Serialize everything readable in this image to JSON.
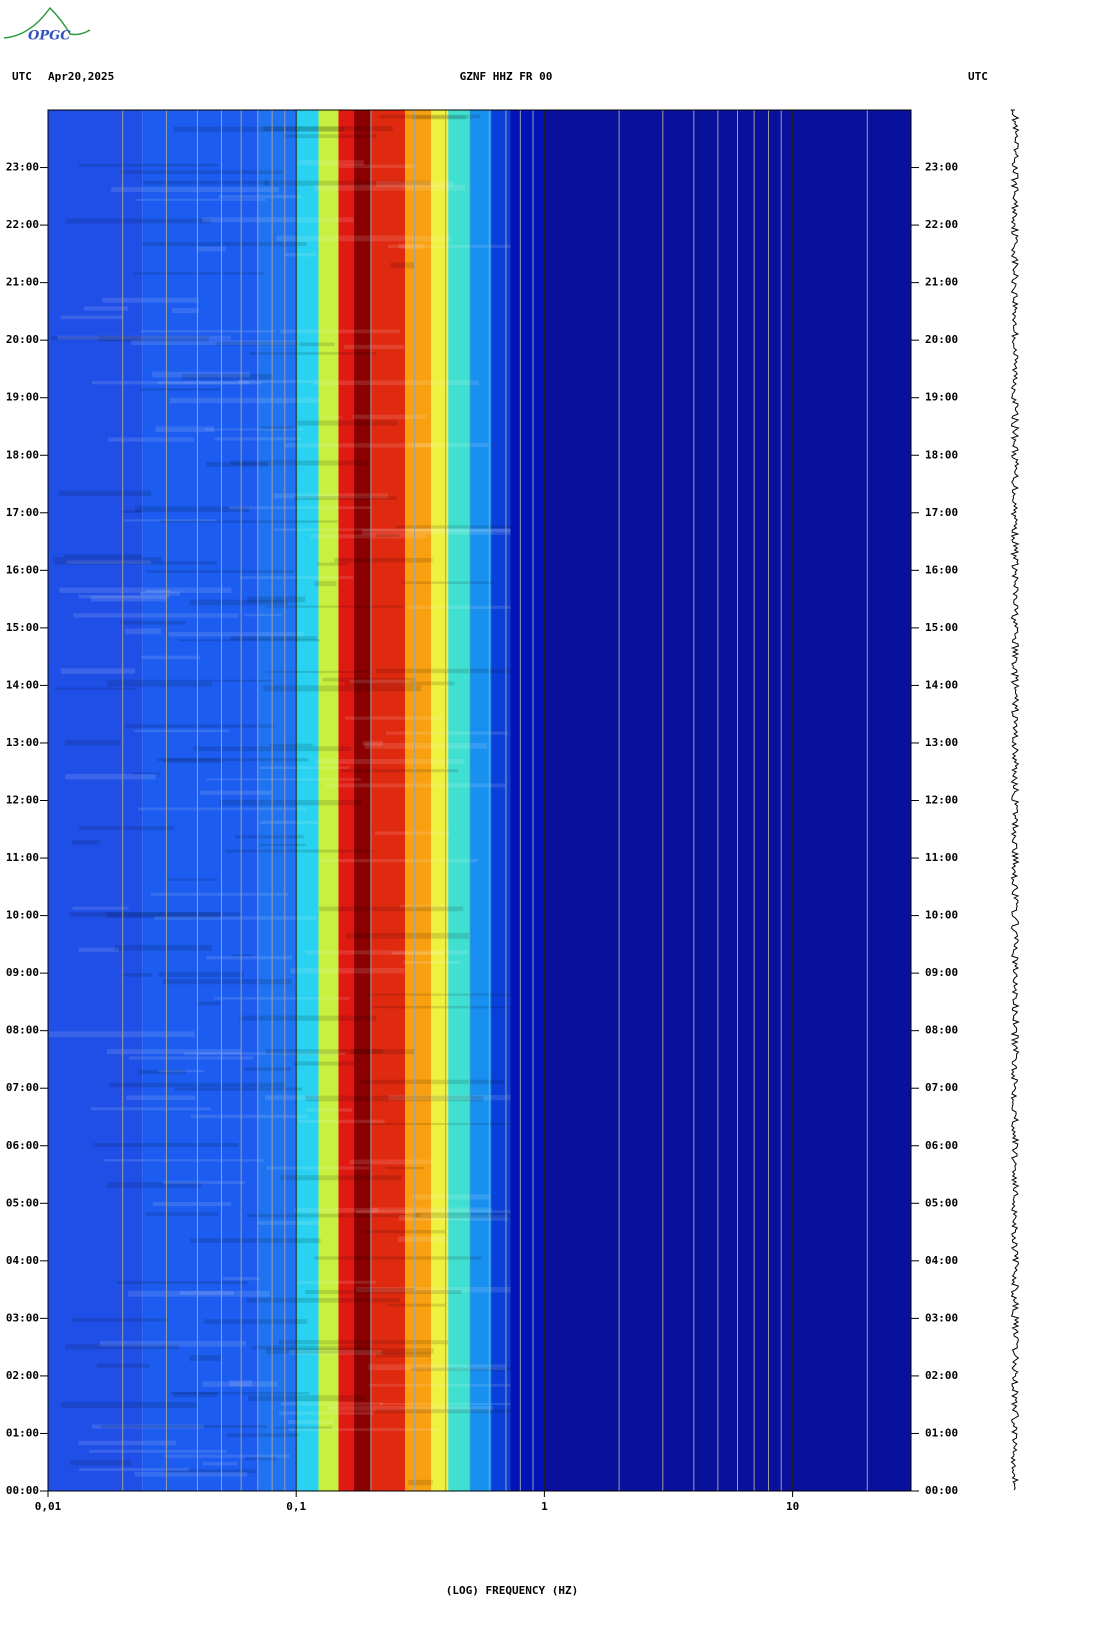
{
  "logo": "OPGC",
  "header": {
    "left_zone": "UTC",
    "date": "Apr20,2025",
    "station": "GZNF HHZ FR 00",
    "right_zone": "UTC"
  },
  "chart_data": {
    "type": "spectrogram",
    "x_label": "(LOG) FREQUENCY (HZ)",
    "xlim": [
      0.01,
      30
    ],
    "x_log": true,
    "xticks": [
      {
        "value": 0.01,
        "label": "0,01"
      },
      {
        "value": 0.1,
        "label": "0,1"
      },
      1,
      10
    ],
    "xgrid": [
      0.02,
      0.03,
      0.04,
      0.05,
      0.06,
      0.07,
      0.08,
      0.09,
      0.2,
      0.3,
      0.4,
      0.5,
      0.6,
      0.7,
      0.8,
      0.9,
      2,
      3,
      4,
      5,
      6,
      7,
      8,
      9,
      20
    ],
    "ylim": [
      0,
      24
    ],
    "yticks": [
      {
        "value": 0,
        "label": "00:00"
      },
      {
        "value": 1,
        "label": "01:00"
      },
      {
        "value": 2,
        "label": "02:00"
      },
      {
        "value": 3,
        "label": "03:00"
      },
      {
        "value": 4,
        "label": "04:00"
      },
      {
        "value": 5,
        "label": "05:00"
      },
      {
        "value": 6,
        "label": "06:00"
      },
      {
        "value": 7,
        "label": "07:00"
      },
      {
        "value": 8,
        "label": "08:00"
      },
      {
        "value": 9,
        "label": "09:00"
      },
      {
        "value": 10,
        "label": "10:00"
      },
      {
        "value": 11,
        "label": "11:00"
      },
      {
        "value": 12,
        "label": "12:00"
      },
      {
        "value": 13,
        "label": "13:00"
      },
      {
        "value": 14,
        "label": "14:00"
      },
      {
        "value": 15,
        "label": "15:00"
      },
      {
        "value": 16,
        "label": "16:00"
      },
      {
        "value": 17,
        "label": "17:00"
      },
      {
        "value": 18,
        "label": "18:00"
      },
      {
        "value": 19,
        "label": "19:00"
      },
      {
        "value": 20,
        "label": "20:00"
      },
      {
        "value": 21,
        "label": "21:00"
      },
      {
        "value": 22,
        "label": "22:00"
      },
      {
        "value": 23,
        "label": "23:00"
      }
    ],
    "bands": [
      {
        "from": 0.01,
        "to": 0.024,
        "color": "#1f4fe6"
      },
      {
        "from": 0.024,
        "to": 0.07,
        "color": "#1c5cf0"
      },
      {
        "from": 0.07,
        "to": 0.1,
        "color": "#1f72f2"
      },
      {
        "from": 0.1,
        "to": 0.123,
        "color": "#28d2f0"
      },
      {
        "from": 0.123,
        "to": 0.148,
        "color": "#c8f040"
      },
      {
        "from": 0.148,
        "to": 0.171,
        "color": "#e01a10"
      },
      {
        "from": 0.171,
        "to": 0.2,
        "color": "#8b0000"
      },
      {
        "from": 0.2,
        "to": 0.275,
        "color": "#e02a10"
      },
      {
        "from": 0.275,
        "to": 0.35,
        "color": "#f8a010"
      },
      {
        "from": 0.35,
        "to": 0.41,
        "color": "#f0f040"
      },
      {
        "from": 0.41,
        "to": 0.5,
        "color": "#40e0d0"
      },
      {
        "from": 0.5,
        "to": 0.61,
        "color": "#1890f0"
      },
      {
        "from": 0.61,
        "to": 0.73,
        "color": "#0a40d8"
      },
      {
        "from": 0.73,
        "to": 1,
        "color": "#0012b8"
      },
      {
        "from": 1,
        "to": 30,
        "color": "#08109c"
      }
    ]
  }
}
